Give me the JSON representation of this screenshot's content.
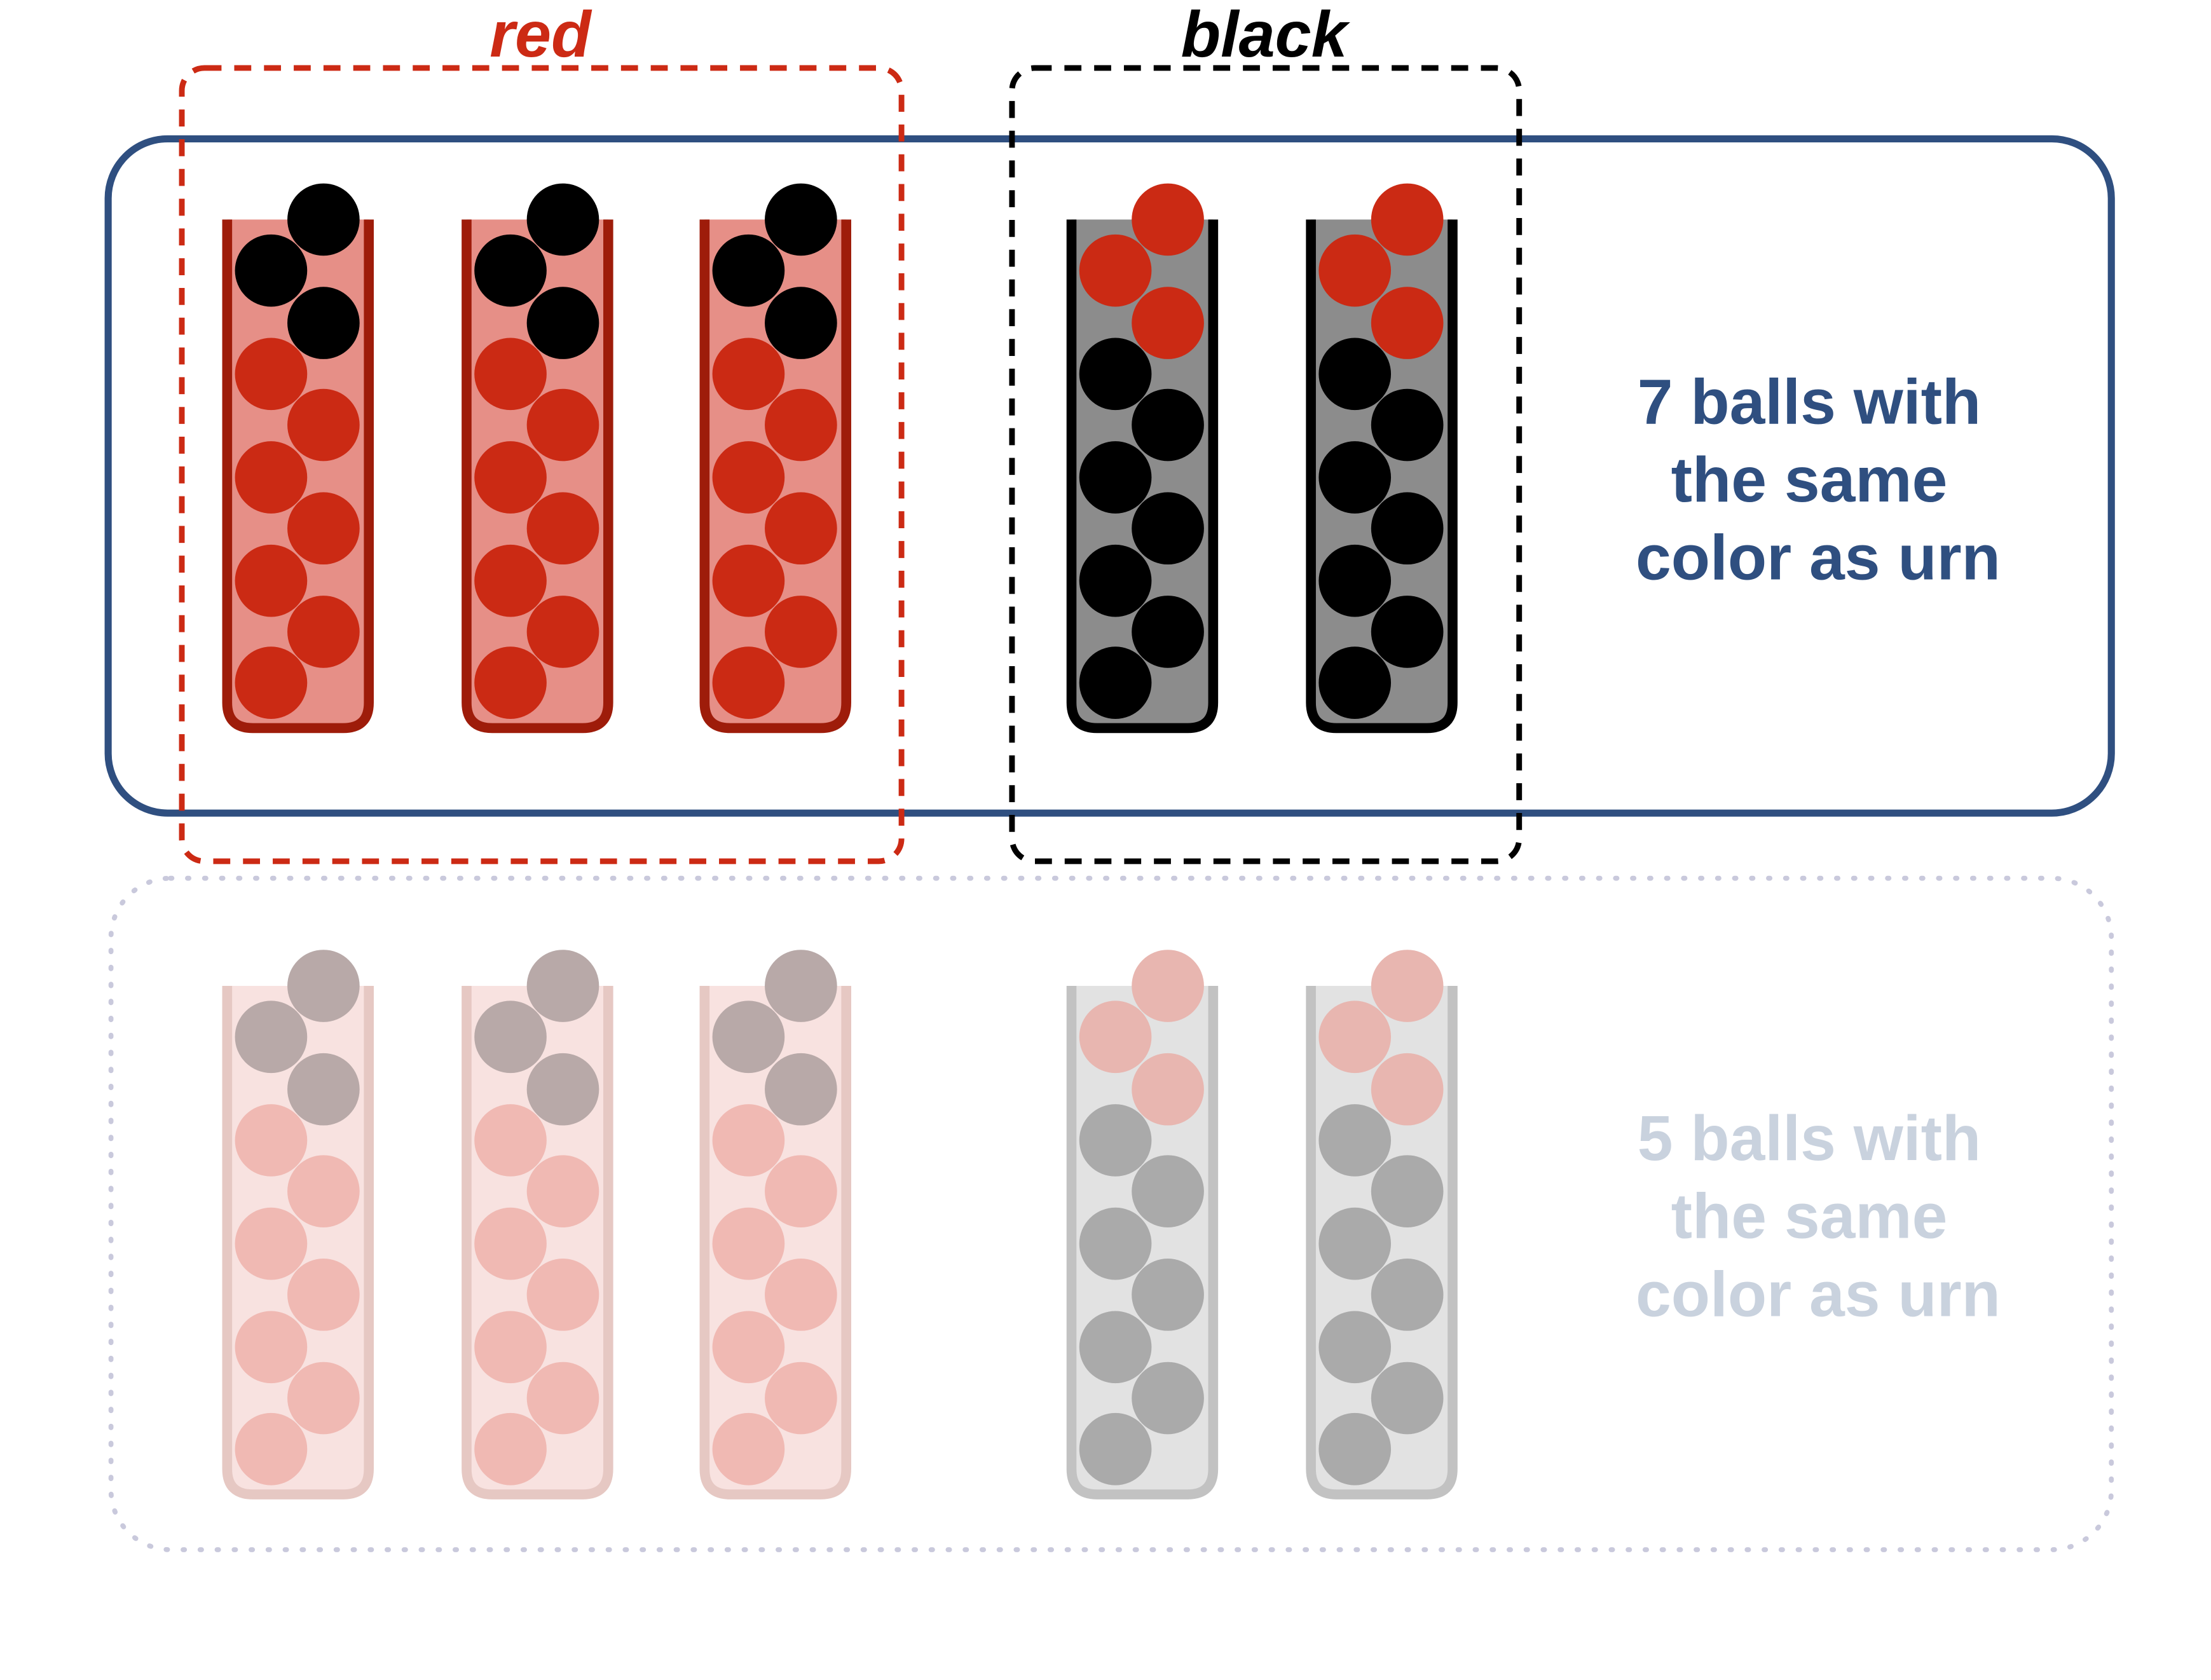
{
  "labels": {
    "red_group": "red",
    "black_group": "black"
  },
  "panels": [
    {
      "id": "top",
      "state": "highlighted",
      "text_lines": [
        "7 balls with",
        "the same",
        "color as urn"
      ],
      "frame_color": "#2f4f80"
    },
    {
      "id": "bottom",
      "state": "faded",
      "text_lines": [
        "5 balls with",
        "the same",
        "color as urn"
      ],
      "frame_color": "#c9c9dc"
    }
  ],
  "urn_groups": [
    {
      "name": "red",
      "urn_color": "red",
      "urn_count": 3,
      "frame_color": "#cc2a14"
    },
    {
      "name": "black",
      "urn_color": "black",
      "urn_count": 2,
      "frame_color": "#000000"
    }
  ],
  "urn_contents": {
    "red": {
      "total": 10,
      "black_balls": 3,
      "red_balls": 7
    },
    "black": {
      "total": 10,
      "red_balls": 3,
      "black_balls": 7
    }
  },
  "colors": {
    "red_ball": "#cb2a14",
    "black_ball": "#000000",
    "red_urn_fill": "#e68f87",
    "red_urn_outline": "#9e1c0a",
    "black_urn_fill": "#8c8c8c",
    "black_urn_outline": "#000000",
    "faded_red_ball": "#f0b9b3",
    "faded_black_ball": "#b8a9a8",
    "faded_gray_ball": "#aaaaaa",
    "faded_pink_ball": "#e8b6b0",
    "faded_red_urn_fill": "#f8e2e0",
    "faded_red_urn_outline": "#e6c8c3",
    "faded_black_urn_fill": "#e2e2e2",
    "faded_black_urn_outline": "#c2c2c2",
    "top_text": "#2f4f80",
    "bottom_text": "#c9d2de"
  }
}
